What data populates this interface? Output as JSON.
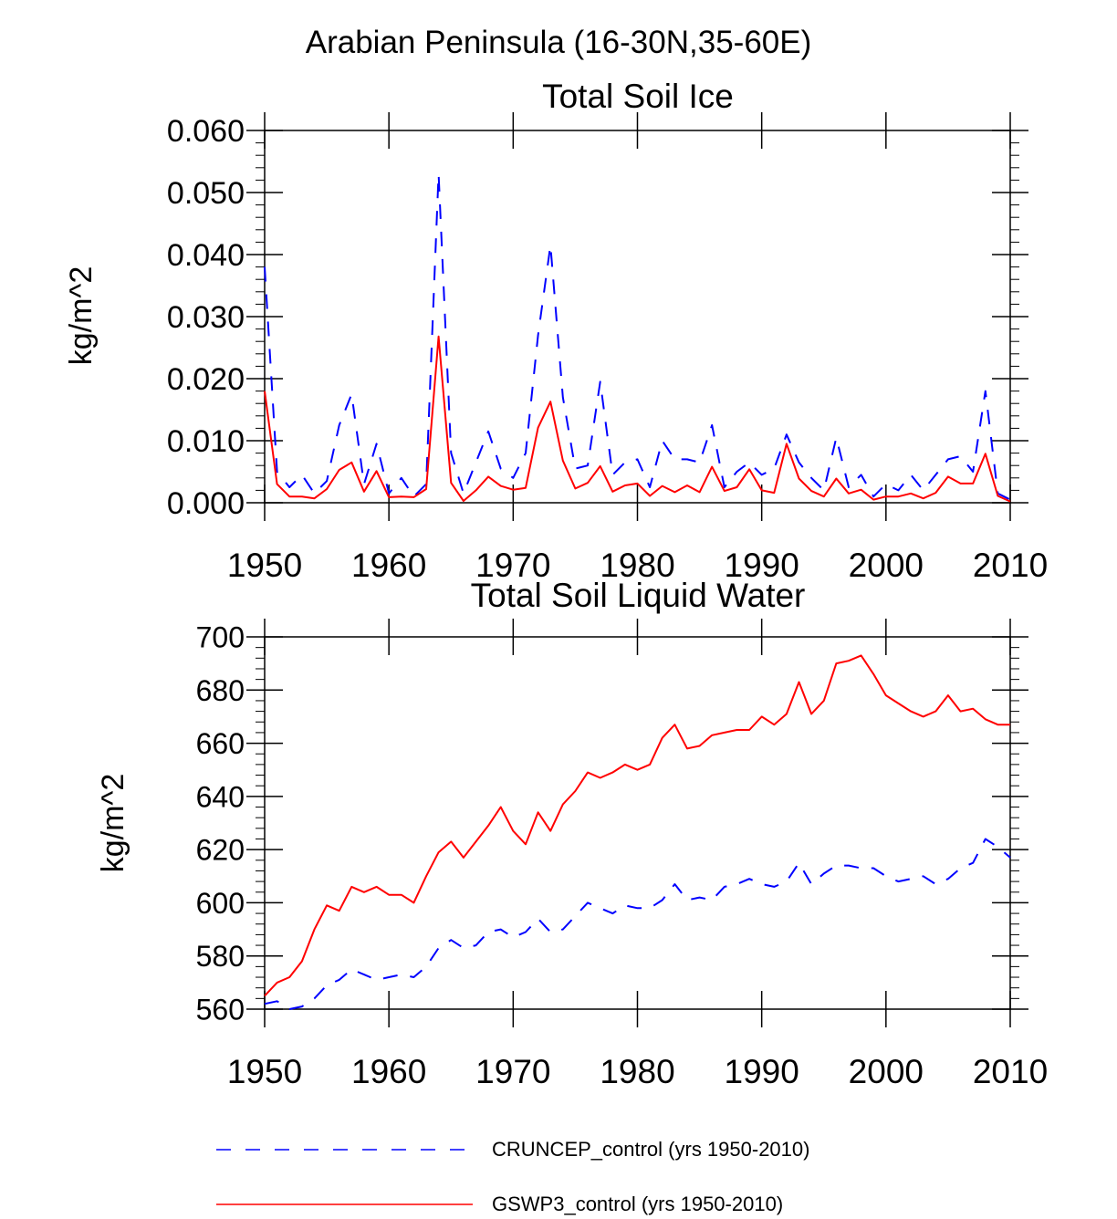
{
  "figure_title": "Arabian Peninsula (16-30N,35-60E)",
  "legend": {
    "items": [
      {
        "label": "CRUNCEP_control (yrs 1950-2010)",
        "color": "#0000ff",
        "dash": "dashed"
      },
      {
        "label": "GSWP3_control (yrs 1950-2010)",
        "color": "#ff0000",
        "dash": "solid"
      }
    ]
  },
  "chart_data": [
    {
      "type": "line",
      "title": "Total Soil Ice",
      "xlabel": "",
      "ylabel": "kg/m^2",
      "xlim": [
        1950,
        2010
      ],
      "ylim": [
        0.0,
        0.06
      ],
      "xticks": [
        1950,
        1960,
        1970,
        1980,
        1990,
        2000,
        2010
      ],
      "xtick_labels": [
        "1950",
        "1960",
        "1970",
        "1980",
        "1990",
        "2000",
        "2010"
      ],
      "yticks": [
        0.0,
        0.01,
        0.02,
        0.03,
        0.04,
        0.05,
        0.06
      ],
      "ytick_labels": [
        "0.000",
        "0.010",
        "0.020",
        "0.030",
        "0.040",
        "0.050",
        "0.060"
      ],
      "x": [
        1950,
        1951,
        1952,
        1953,
        1954,
        1955,
        1956,
        1957,
        1958,
        1959,
        1960,
        1961,
        1962,
        1963,
        1964,
        1965,
        1966,
        1967,
        1968,
        1969,
        1970,
        1971,
        1972,
        1973,
        1974,
        1975,
        1976,
        1977,
        1978,
        1979,
        1980,
        1981,
        1982,
        1983,
        1984,
        1985,
        1986,
        1987,
        1988,
        1989,
        1990,
        1991,
        1992,
        1993,
        1994,
        1995,
        1996,
        1997,
        1998,
        1999,
        2000,
        2001,
        2002,
        2003,
        2004,
        2005,
        2006,
        2007,
        2008,
        2009,
        2010
      ],
      "series": [
        {
          "name": "CRUNCEP_control (yrs 1950-2010)",
          "color": "#0000ff",
          "dash": "dashed",
          "values": [
            0.038,
            0.005,
            0.0025,
            0.0045,
            0.0015,
            0.0035,
            0.0125,
            0.0175,
            0.003,
            0.0095,
            0.0015,
            0.004,
            0.001,
            0.003,
            0.053,
            0.008,
            0.0015,
            0.0065,
            0.0115,
            0.0055,
            0.004,
            0.008,
            0.027,
            0.0415,
            0.017,
            0.0055,
            0.006,
            0.0195,
            0.0045,
            0.0065,
            0.007,
            0.0025,
            0.01,
            0.007,
            0.007,
            0.0065,
            0.0125,
            0.0025,
            0.005,
            0.0065,
            0.0045,
            0.0055,
            0.011,
            0.0065,
            0.004,
            0.002,
            0.0105,
            0.0025,
            0.0045,
            0.001,
            0.003,
            0.002,
            0.0045,
            0.002,
            0.0045,
            0.007,
            0.0075,
            0.005,
            0.018,
            0.0015,
            0.0005
          ]
        },
        {
          "name": "GSWP3_control (yrs 1950-2010)",
          "color": "#ff0000",
          "dash": "solid",
          "values": [
            0.018,
            0.003,
            0.001,
            0.001,
            0.0007,
            0.0022,
            0.0053,
            0.0065,
            0.0018,
            0.0051,
            0.0009,
            0.001,
            0.0009,
            0.0022,
            0.0268,
            0.0032,
            0.0003,
            0.002,
            0.0042,
            0.0027,
            0.0021,
            0.0024,
            0.0121,
            0.0163,
            0.0068,
            0.0023,
            0.0032,
            0.0059,
            0.0018,
            0.0028,
            0.0031,
            0.0011,
            0.0027,
            0.0017,
            0.0028,
            0.0017,
            0.0058,
            0.0019,
            0.0025,
            0.0054,
            0.002,
            0.0016,
            0.0095,
            0.0039,
            0.0019,
            0.001,
            0.0039,
            0.0015,
            0.0021,
            0.0005,
            0.001,
            0.001,
            0.0015,
            0.0007,
            0.0016,
            0.0042,
            0.0031,
            0.0031,
            0.0079,
            0.0011,
            0.0002
          ]
        }
      ]
    },
    {
      "type": "line",
      "title": "Total Soil Liquid Water",
      "xlabel": "",
      "ylabel": "kg/m^2",
      "xlim": [
        1950,
        2010
      ],
      "ylim": [
        560,
        700
      ],
      "xticks": [
        1950,
        1960,
        1970,
        1980,
        1990,
        2000,
        2010
      ],
      "xtick_labels": [
        "1950",
        "1960",
        "1970",
        "1980",
        "1990",
        "2000",
        "2010"
      ],
      "yticks": [
        560,
        580,
        600,
        620,
        640,
        660,
        680,
        700
      ],
      "ytick_labels": [
        "560",
        "580",
        "600",
        "620",
        "640",
        "660",
        "680",
        "700"
      ],
      "x": [
        1950,
        1951,
        1952,
        1953,
        1954,
        1955,
        1956,
        1957,
        1958,
        1959,
        1960,
        1961,
        1962,
        1963,
        1964,
        1965,
        1966,
        1967,
        1968,
        1969,
        1970,
        1971,
        1972,
        1973,
        1974,
        1975,
        1976,
        1977,
        1978,
        1979,
        1980,
        1981,
        1982,
        1983,
        1984,
        1985,
        1986,
        1987,
        1988,
        1989,
        1990,
        1991,
        1992,
        1993,
        1994,
        1995,
        1996,
        1997,
        1998,
        1999,
        2000,
        2001,
        2002,
        2003,
        2004,
        2005,
        2006,
        2007,
        2008,
        2009,
        2010
      ],
      "series": [
        {
          "name": "CRUNCEP_control (yrs 1950-2010)",
          "color": "#0000ff",
          "dash": "dashed",
          "values": [
            562,
            563,
            560,
            561,
            564,
            569,
            571,
            575,
            573,
            571,
            572,
            573,
            572,
            576,
            583,
            586,
            583,
            584,
            589,
            590,
            587,
            589,
            594,
            589,
            590,
            595,
            600,
            598,
            596,
            599,
            598,
            598,
            601,
            607,
            601,
            602,
            601,
            606,
            607,
            609,
            607,
            606,
            608,
            615,
            607,
            611,
            614,
            614,
            613,
            613,
            610,
            608,
            609,
            610,
            607,
            609,
            613,
            615,
            624,
            621,
            617
          ]
        },
        {
          "name": "GSWP3_control (yrs 1950-2010)",
          "color": "#ff0000",
          "dash": "solid",
          "values": [
            565,
            570,
            572,
            578,
            590,
            599,
            597,
            606,
            604,
            606,
            603,
            603,
            600,
            610,
            619,
            623,
            617,
            623,
            629,
            636,
            627,
            622,
            634,
            627,
            637,
            642,
            649,
            647,
            649,
            652,
            650,
            652,
            662,
            667,
            658,
            659,
            663,
            664,
            665,
            665,
            670,
            667,
            671,
            683,
            671,
            676,
            690,
            691,
            693,
            686,
            678,
            675,
            672,
            670,
            672,
            678,
            672,
            673,
            669,
            667,
            667
          ]
        }
      ]
    }
  ]
}
